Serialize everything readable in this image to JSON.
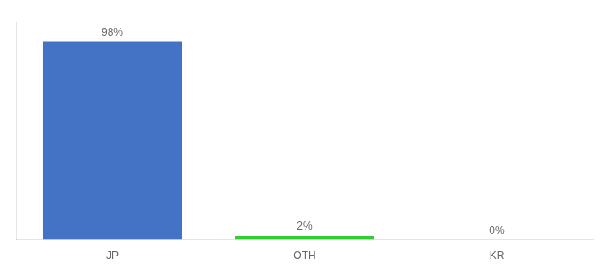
{
  "chart_data": {
    "type": "bar",
    "categories": [
      "JP",
      "OTH",
      "KR"
    ],
    "values": [
      98,
      2,
      0
    ],
    "value_labels": [
      "98%",
      "2%",
      "0%"
    ],
    "colors": [
      "#4472c4",
      "#33cc33",
      "#4472c4"
    ],
    "ylim": [
      0,
      108
    ],
    "data_labels": true,
    "tick_labels": "x",
    "grid": false
  }
}
